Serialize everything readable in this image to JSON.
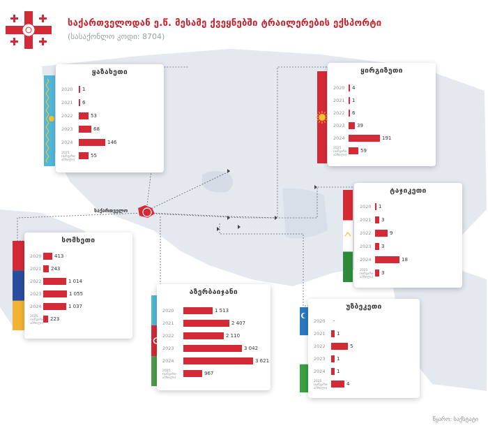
{
  "header": {
    "title": "საქართველოდან ე.წ. მესამე ქვეყნებში ტრაილერების ექსპორტი",
    "subtitle": "(სასაქონლო კოდი: 8704)"
  },
  "footer": {
    "source": "წყარო: საქსტატი"
  },
  "origin_label": "საქართველო",
  "colors": {
    "accent": "#d42a35",
    "map": "#e4e8ef"
  },
  "chart_data": [
    {
      "type": "bar",
      "title": "ყაზახეთი",
      "categories": [
        "2020",
        "2021",
        "2022",
        "2023",
        "2024",
        "2025 (იანვარი-აპრილი)"
      ],
      "values": [
        1,
        6,
        53,
        68,
        146,
        55
      ],
      "value_labels": [
        "1",
        "6",
        "53",
        "68",
        "146",
        "55"
      ]
    },
    {
      "type": "bar",
      "title": "ყირგიზეთი",
      "categories": [
        "2020",
        "2021",
        "2022",
        "2023",
        "2024",
        "2025 (იანვარი-აპრილი)"
      ],
      "values": [
        4,
        1,
        6,
        39,
        191,
        59
      ],
      "value_labels": [
        "4",
        "1",
        "6",
        "39",
        "191",
        "59"
      ]
    },
    {
      "type": "bar",
      "title": "ტაჯიკეთი",
      "categories": [
        "2020",
        "2021",
        "2022",
        "2023",
        "2024",
        "2025 (იანვარი-აპრილი)"
      ],
      "values": [
        1,
        3,
        9,
        3,
        18,
        3
      ],
      "value_labels": [
        "1",
        "3",
        "9",
        "3",
        "18",
        "3"
      ]
    },
    {
      "type": "bar",
      "title": "სომხეთი",
      "categories": [
        "2020",
        "2021",
        "2022",
        "2023",
        "2024",
        "2025 (იანვარი-აპრილი)"
      ],
      "values": [
        413,
        243,
        1014,
        1055,
        1037,
        223
      ],
      "value_labels": [
        "413",
        "243",
        "1 014",
        "1 055",
        "1 037",
        "223"
      ]
    },
    {
      "type": "bar",
      "title": "აზერბაიჯანი",
      "categories": [
        "2020",
        "2021",
        "2022",
        "2023",
        "2024",
        "2025 (იანვარი-აპრილი)"
      ],
      "values": [
        1513,
        2407,
        2110,
        3042,
        3621,
        967
      ],
      "value_labels": [
        "1 513",
        "2 407",
        "2 110",
        "3 042",
        "3 621",
        "967"
      ]
    },
    {
      "type": "bar",
      "title": "უზბეკეთი",
      "categories": [
        "2020",
        "2021",
        "2022",
        "2023",
        "2024",
        "2025 (იანვარი-აპრილი)"
      ],
      "values": [
        0,
        1,
        5,
        1,
        1,
        4
      ],
      "value_labels": [
        "-",
        "1",
        "5",
        "1",
        "1",
        "4"
      ]
    }
  ]
}
